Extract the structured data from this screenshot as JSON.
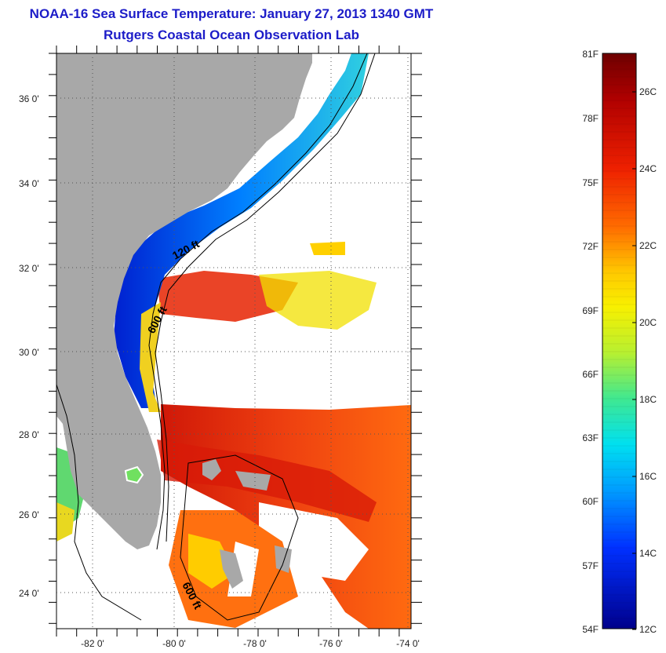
{
  "title": {
    "line1": "NOAA-16 Sea Surface Temperature:  January 27, 2013 1340 GMT",
    "line2": "Rutgers Coastal Ocean Observation Lab"
  },
  "map": {
    "lat_labels": [
      "36 0'",
      "34 0'",
      "32 0'",
      "30 0'",
      "28 0'",
      "26 0'",
      "24 0'"
    ],
    "lon_labels": [
      "-82 0'",
      "-80 0'",
      "-78 0'",
      "-76 0'",
      "-74 0'"
    ],
    "contour_labels": [
      "120 ft",
      "600 ft",
      "600 ft"
    ]
  },
  "colorbar": {
    "f_labels": [
      "81F",
      "78F",
      "75F",
      "72F",
      "69F",
      "66F",
      "63F",
      "60F",
      "57F",
      "54F"
    ],
    "c_labels": [
      "26C",
      "24C",
      "22C",
      "20C",
      "18C",
      "16C",
      "14C",
      "12C"
    ],
    "colors": [
      "#7a0000",
      "#c80000",
      "#ff3a00",
      "#ff9a00",
      "#ffd400",
      "#f0f000",
      "#9cf050",
      "#38e8b0",
      "#00d8f0",
      "#0080ff",
      "#0020ff",
      "#00008a"
    ]
  }
}
